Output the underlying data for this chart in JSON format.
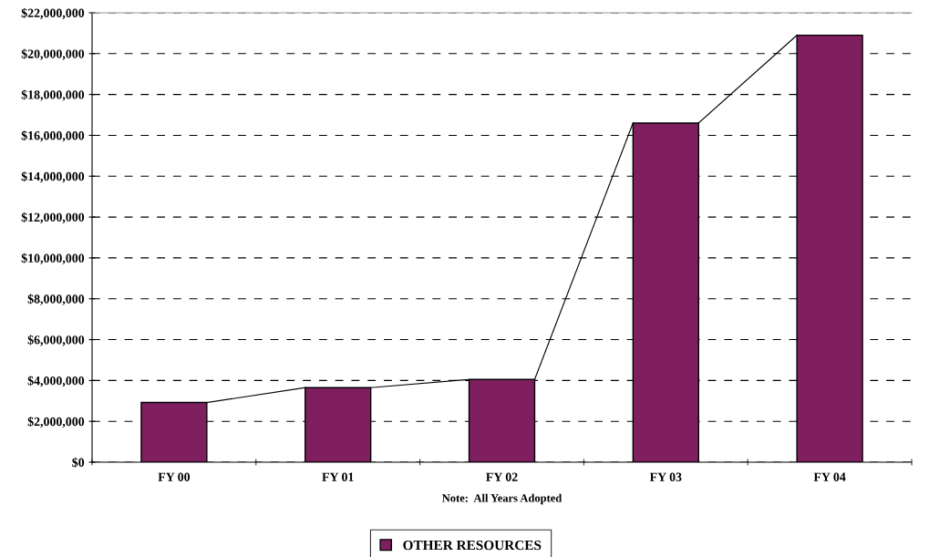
{
  "chart_data": {
    "type": "bar",
    "xlabel": "Note:  All Years Adopted",
    "categories": [
      "FY 00",
      "FY 01",
      "FY 02",
      "FY 03",
      "FY 04"
    ],
    "series": [
      {
        "name": "OTHER RESOURCES",
        "color": "#7f1f5f",
        "values": [
          2920000,
          3650000,
          4050000,
          16600000,
          20900000
        ]
      }
    ],
    "ylim": [
      0,
      22000000
    ],
    "yticks": [
      {
        "value": 0,
        "label": "$0"
      },
      {
        "value": 2000000,
        "label": "$2,000,000"
      },
      {
        "value": 4000000,
        "label": "$4,000,000"
      },
      {
        "value": 6000000,
        "label": "$6,000,000"
      },
      {
        "value": 8000000,
        "label": "$8,000,000"
      },
      {
        "value": 10000000,
        "label": "$10,000,000"
      },
      {
        "value": 12000000,
        "label": "$12,000,000"
      },
      {
        "value": 14000000,
        "label": "$14,000,000"
      },
      {
        "value": 16000000,
        "label": "$16,000,000"
      },
      {
        "value": 18000000,
        "label": "$18,000,000"
      },
      {
        "value": 20000000,
        "label": "$20,000,000"
      },
      {
        "value": 22000000,
        "label": "$22,000,000"
      }
    ],
    "grid": "y",
    "legend": "bottom"
  }
}
